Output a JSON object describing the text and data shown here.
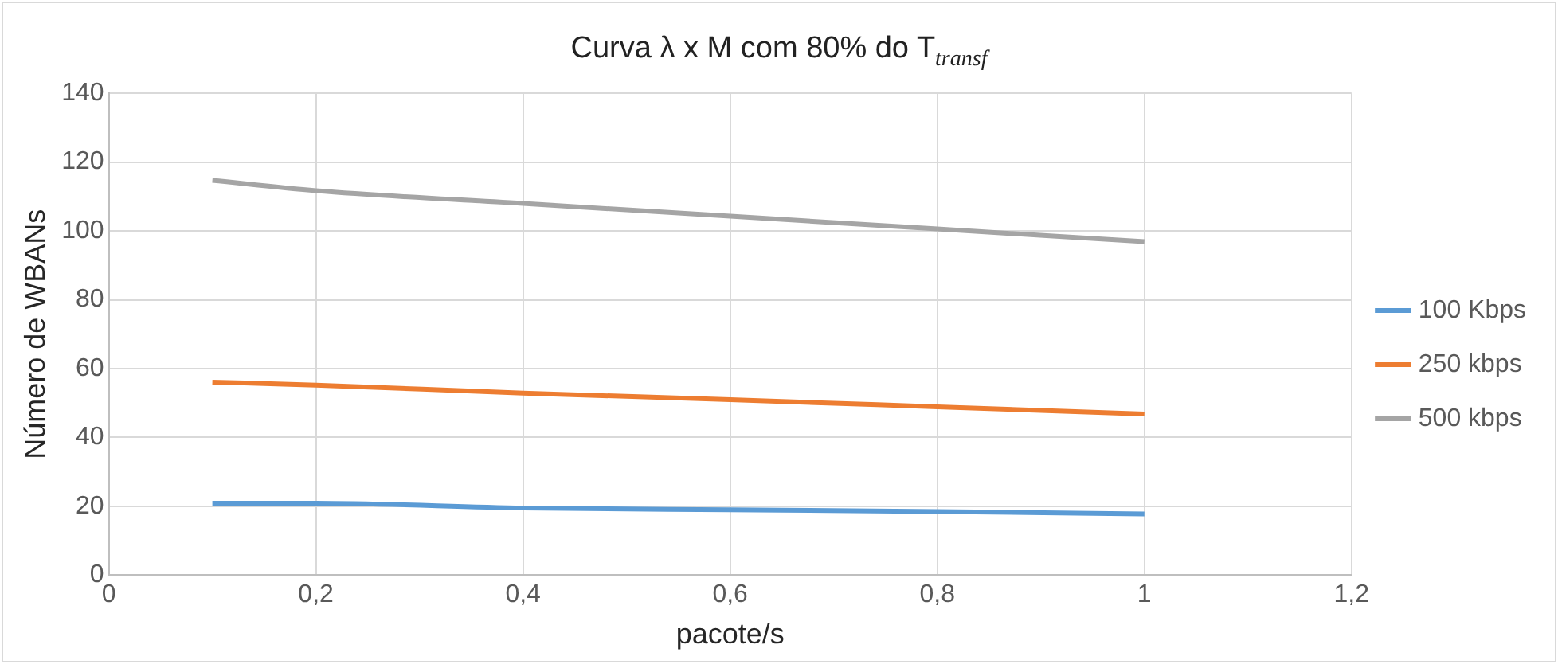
{
  "chart_data": {
    "type": "line",
    "title": "Curva λ x M com 80% do T$_{transf}$",
    "xlabel": "pacote/s",
    "ylabel": "Número de WBANs",
    "x": [
      0.1,
      0.2,
      0.4,
      0.6,
      0.8,
      1.0
    ],
    "series": [
      {
        "name": "100 Kbps",
        "color": "#5b9bd5",
        "values": [
          20.9,
          20.9,
          19.5,
          19,
          18.5,
          17.8
        ]
      },
      {
        "name": "250 kbps",
        "color": "#ed7d31",
        "values": [
          56.1,
          55.2,
          52.9,
          51,
          48.9,
          46.8
        ]
      },
      {
        "name": "500 kbps",
        "color": "#a5a5a5",
        "values": [
          114.7,
          111.7,
          108,
          104.3,
          100.6,
          96.9
        ]
      }
    ],
    "xlim": [
      0,
      1.2
    ],
    "xticks": [
      0,
      {
        "value": 0.2,
        "label": "0,2"
      },
      {
        "value": 0.4,
        "label": "0,4"
      },
      {
        "value": 0.6,
        "label": "0,6"
      },
      {
        "value": 0.8,
        "label": "0,8"
      },
      1,
      {
        "value": 1.2,
        "label": "1,2"
      }
    ],
    "ylim": [
      0,
      140
    ],
    "yticks": [
      0,
      20,
      40,
      60,
      80,
      100,
      120,
      140
    ],
    "grid": true,
    "legend": "right",
    "marker": "none",
    "line_style": "solid"
  }
}
